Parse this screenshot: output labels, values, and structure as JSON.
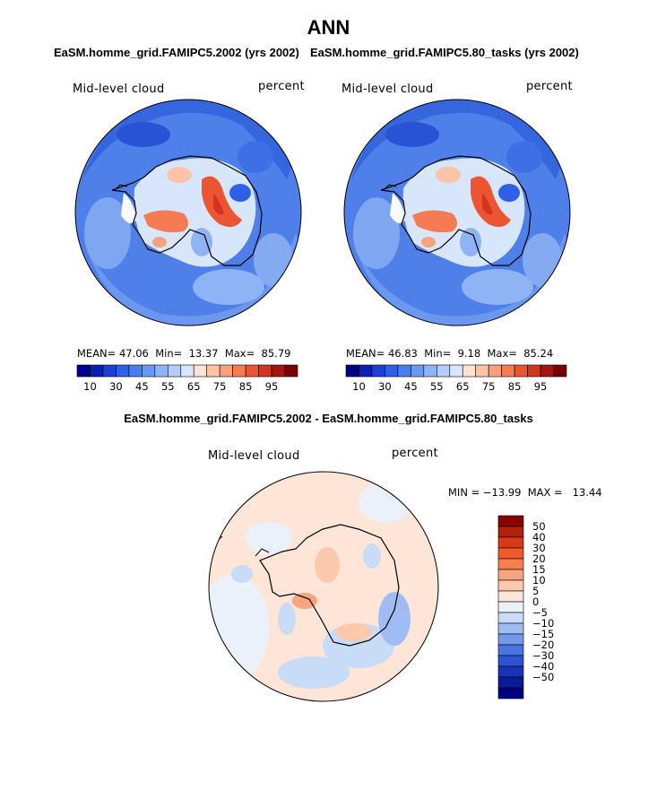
{
  "title": "ANN",
  "panels": [
    {
      "subtitle": "EaSM.homme_grid.FAMIPC5.2002 (yrs 2002)",
      "variable": "Mid-level cloud",
      "units": "percent",
      "stats": {
        "mean_label": "MEAN=",
        "mean": "47.06",
        "min_label": "Min=",
        "min": "13.37",
        "max_label": "Max=",
        "max": "85.79"
      }
    },
    {
      "subtitle": "EaSM.homme_grid.FAMIPC5.80_tasks (yrs 2002)",
      "variable": "Mid-level cloud",
      "units": "percent",
      "stats": {
        "mean_label": "MEAN=",
        "mean": "46.83",
        "min_label": "Min=",
        "min": "9.18",
        "max_label": "Max=",
        "max": "85.24"
      }
    }
  ],
  "abs_colorbar": {
    "colors": [
      "#00008b",
      "#0a1fb5",
      "#1c3fd6",
      "#2f5fe8",
      "#4a7ef0",
      "#6a98f2",
      "#8fb4f5",
      "#b4cdf8",
      "#d8e6fb",
      "#fde3d3",
      "#fcc4a6",
      "#f9a07c",
      "#f57b55",
      "#ec5532",
      "#d4341d",
      "#a4150f",
      "#7a0000"
    ],
    "tick_labels": [
      "10",
      "30",
      "45",
      "55",
      "65",
      "75",
      "85",
      "95"
    ]
  },
  "diff_panel": {
    "subtitle": "EaSM.homme_grid.FAMIPC5.2002 - EaSM.homme_grid.FAMIPC5.80_tasks",
    "variable": "Mid-level cloud",
    "units": "percent",
    "minmax_text": "MIN = −13.99  MAX =   13.44",
    "colorbar": {
      "colors": [
        "#8b0000",
        "#b3200c",
        "#d63a17",
        "#f0592a",
        "#f77e4f",
        "#faa47d",
        "#fcc9ad",
        "#fde6d8",
        "#eaf1fb",
        "#c8dbf7",
        "#9fbdf2",
        "#7199ec",
        "#4a74e4",
        "#2c52d6",
        "#1733b7",
        "#0a1b98",
        "#000080"
      ],
      "tick_labels": [
        "50",
        "40",
        "30",
        "20",
        "15",
        "10",
        "5",
        "0",
        "−5",
        "−10",
        "−15",
        "−20",
        "−30",
        "−40",
        "−50"
      ]
    }
  }
}
